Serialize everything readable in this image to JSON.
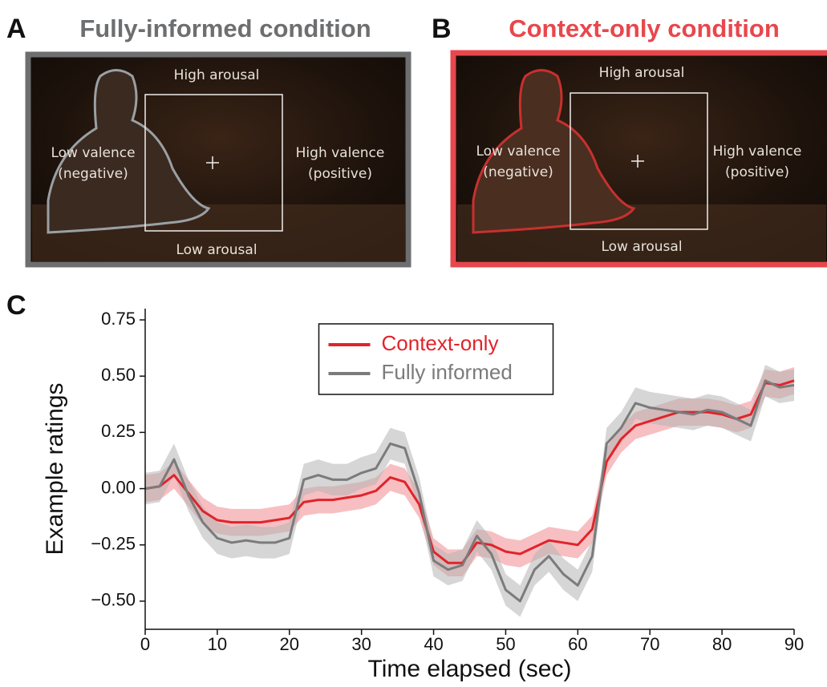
{
  "panels": [
    {
      "letter": "A",
      "title": "Fully-informed condition",
      "high_arousal": "High arousal",
      "low_arousal": "Low arousal",
      "low_valence": "Low valence",
      "low_valence_note": "(negative)",
      "high_valence": "High valence",
      "high_valence_note": "(positive)"
    },
    {
      "letter": "B",
      "title": "Context-only condition",
      "high_arousal": "High arousal",
      "low_arousal": "Low arousal",
      "low_valence": "Low valence",
      "low_valence_note": "(negative)",
      "high_valence": "High valence",
      "high_valence_note": "(positive)"
    }
  ],
  "chart_letter": "C",
  "chart_data": {
    "type": "line",
    "x_label": "Time elapsed (sec)",
    "y_label": "Example ratings",
    "x": [
      0,
      2,
      4,
      6,
      8,
      10,
      12,
      14,
      16,
      18,
      20,
      22,
      24,
      26,
      28,
      30,
      32,
      34,
      36,
      38,
      40,
      42,
      44,
      46,
      48,
      50,
      52,
      54,
      56,
      58,
      60,
      62,
      64,
      66,
      68,
      70,
      72,
      74,
      76,
      78,
      80,
      82,
      84,
      86,
      88,
      90
    ],
    "series": [
      {
        "name": "Context-only",
        "color": "#e0242b",
        "band_color": "#f08a90",
        "error": 0.06,
        "values": [
          0.0,
          0.01,
          0.06,
          -0.02,
          -0.1,
          -0.14,
          -0.15,
          -0.15,
          -0.15,
          -0.14,
          -0.13,
          -0.06,
          -0.05,
          -0.05,
          -0.04,
          -0.03,
          -0.01,
          0.05,
          0.03,
          -0.07,
          -0.28,
          -0.33,
          -0.33,
          -0.24,
          -0.25,
          -0.28,
          -0.29,
          -0.26,
          -0.23,
          -0.24,
          -0.25,
          -0.18,
          0.12,
          0.22,
          0.28,
          0.3,
          0.32,
          0.34,
          0.34,
          0.34,
          0.33,
          0.31,
          0.33,
          0.47,
          0.46,
          0.48
        ]
      },
      {
        "name": "Fully informed",
        "color": "#7b7b7b",
        "band_color": "#b5b5b5",
        "error": 0.07,
        "values": [
          0.0,
          0.01,
          0.13,
          -0.03,
          -0.15,
          -0.22,
          -0.24,
          -0.23,
          -0.24,
          -0.24,
          -0.22,
          0.04,
          0.06,
          0.04,
          0.04,
          0.07,
          0.09,
          0.2,
          0.18,
          -0.02,
          -0.32,
          -0.36,
          -0.34,
          -0.21,
          -0.29,
          -0.45,
          -0.5,
          -0.36,
          -0.3,
          -0.38,
          -0.43,
          -0.3,
          0.2,
          0.27,
          0.38,
          0.36,
          0.35,
          0.34,
          0.33,
          0.35,
          0.34,
          0.31,
          0.28,
          0.48,
          0.45,
          0.46
        ]
      }
    ],
    "xlim": [
      0,
      90
    ],
    "xticks": [
      0,
      10,
      20,
      30,
      40,
      50,
      60,
      70,
      80,
      90
    ],
    "ylim": [
      -0.625,
      0.8
    ],
    "yticks": [
      {
        "value": -0.5,
        "label": "−0.50"
      },
      {
        "value": -0.25,
        "label": "−0.25"
      },
      {
        "value": 0,
        "label": "0.00"
      },
      {
        "value": 0.25,
        "label": "0.25"
      },
      {
        "value": 0.5,
        "label": "0.50"
      },
      0.75
    ],
    "legend": "upper center",
    "grid": false
  }
}
